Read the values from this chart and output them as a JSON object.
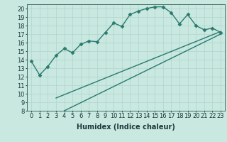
{
  "line1_x": [
    0,
    1,
    2,
    3,
    4,
    5,
    6,
    7,
    8,
    9,
    10,
    11,
    12,
    13,
    14,
    15,
    16,
    17,
    18,
    19,
    20,
    21,
    22,
    23
  ],
  "line1_y": [
    13.8,
    12.2,
    13.2,
    14.5,
    15.3,
    14.8,
    15.8,
    16.2,
    16.1,
    17.2,
    18.3,
    17.9,
    19.3,
    19.7,
    20.0,
    20.2,
    20.2,
    19.5,
    18.2,
    19.3,
    18.0,
    17.5,
    17.7,
    17.2
  ],
  "line2_x": [
    3,
    23
  ],
  "line2_y": [
    9.5,
    17.3
  ],
  "line3_x": [
    4,
    23
  ],
  "line3_y": [
    8.0,
    17.0
  ],
  "color": "#2a7a6f",
  "bg_color": "#c8e8e0",
  "grid_color": "#b0d4cc",
  "xlabel": "Humidex (Indice chaleur)",
  "xlim": [
    -0.5,
    23.5
  ],
  "ylim": [
    8,
    20.5
  ],
  "xticks": [
    0,
    1,
    2,
    3,
    4,
    5,
    6,
    7,
    8,
    9,
    10,
    11,
    12,
    13,
    14,
    15,
    16,
    17,
    18,
    19,
    20,
    21,
    22,
    23
  ],
  "yticks": [
    8,
    9,
    10,
    11,
    12,
    13,
    14,
    15,
    16,
    17,
    18,
    19,
    20
  ],
  "marker": "D",
  "markersize": 2.5,
  "linewidth": 1.0,
  "font_size": 6.5
}
